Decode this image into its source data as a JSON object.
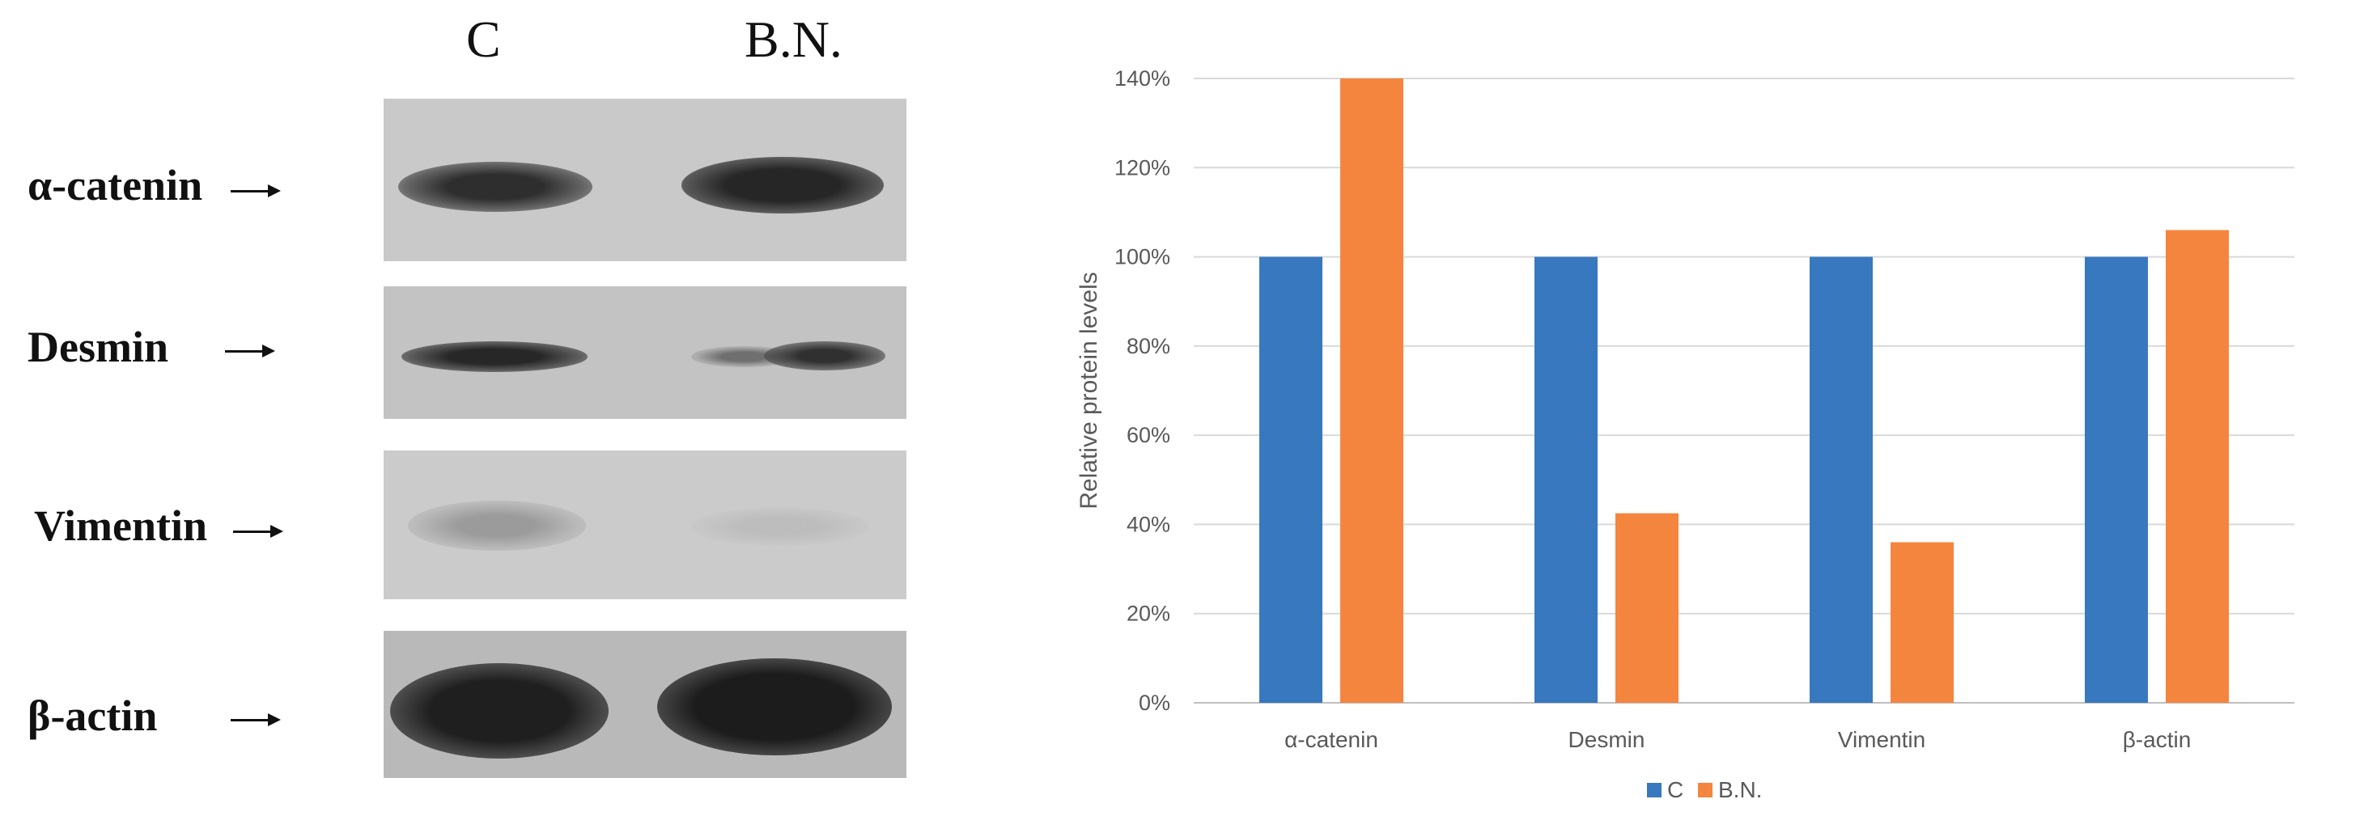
{
  "blot": {
    "lanes": [
      "C",
      "B.N."
    ],
    "rows": [
      {
        "protein": "α-catenin"
      },
      {
        "protein": "Desmin"
      },
      {
        "protein": "Vimentin"
      },
      {
        "protein": "β-actin"
      }
    ]
  },
  "chart_data": {
    "type": "bar",
    "categories": [
      "α-catenin",
      "Desmin",
      "Vimentin",
      "β-actin"
    ],
    "series": [
      {
        "name": "C",
        "color": "#3878be",
        "values": [
          100,
          100,
          100,
          100
        ]
      },
      {
        "name": "B.N.",
        "color": "#f4853f",
        "values": [
          140,
          42.5,
          36,
          106
        ]
      }
    ],
    "ylabel": "Relative protein levels",
    "ylim": [
      0,
      140
    ],
    "yticks": [
      "0%",
      "20%",
      "40%",
      "60%",
      "80%",
      "100%",
      "120%",
      "140%"
    ],
    "grid": true,
    "legend": "bottom"
  }
}
